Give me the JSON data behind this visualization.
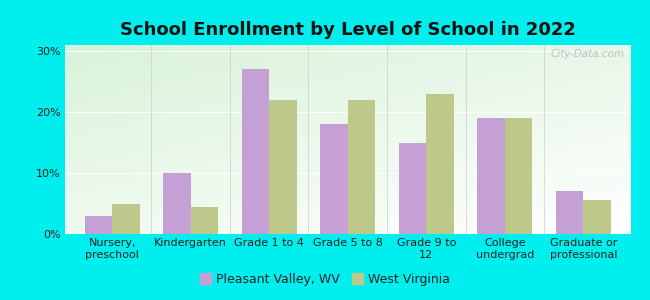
{
  "title": "School Enrollment by Level of School in 2022",
  "categories": [
    "Nursery,\npreschool",
    "Kindergarten",
    "Grade 1 to 4",
    "Grade 5 to 8",
    "Grade 9 to\n12",
    "College\nundergrad",
    "Graduate or\nprofessional"
  ],
  "pleasant_valley": [
    3,
    10,
    27,
    18,
    15,
    19,
    7
  ],
  "west_virginia": [
    5,
    4.5,
    22,
    22,
    23,
    19,
    5.5
  ],
  "bar_color_pv": "#c4a0d4",
  "bar_color_wv": "#bec88a",
  "background_outer": "#00EEEE",
  "ylabel_ticks": [
    "0%",
    "10%",
    "20%",
    "30%"
  ],
  "ytick_vals": [
    0,
    10,
    20,
    30
  ],
  "ylim": [
    0,
    31
  ],
  "legend_label_pv": "Pleasant Valley, WV",
  "legend_label_wv": "West Virginia",
  "watermark": "City-Data.com",
  "title_fontsize": 13,
  "tick_fontsize": 8,
  "legend_fontsize": 9
}
